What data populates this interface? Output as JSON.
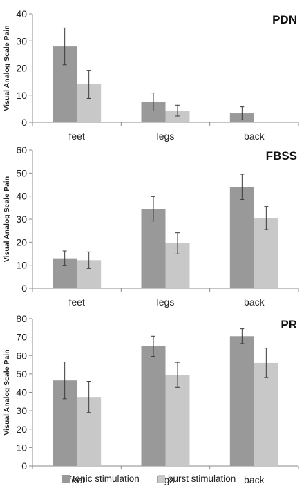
{
  "chart_data": [
    {
      "type": "bar",
      "title": "PDN",
      "ylabel": "Visual Analog Scale Pain",
      "ylim": [
        0,
        40
      ],
      "yticks": [
        0,
        10,
        20,
        30,
        40
      ],
      "categories": [
        "feet",
        "legs",
        "back"
      ],
      "series": [
        {
          "name": "tonic stimulation",
          "values": [
            28,
            7.5,
            3.3
          ],
          "errors": [
            6.8,
            3.3,
            2.4
          ]
        },
        {
          "name": "burst stimulation",
          "values": [
            14,
            4.3,
            0
          ],
          "errors": [
            5.2,
            2.0,
            0
          ]
        }
      ]
    },
    {
      "type": "bar",
      "title": "FBSS",
      "ylabel": "Visual Analog Scale Pain",
      "ylim": [
        0,
        60
      ],
      "yticks": [
        0,
        10,
        20,
        30,
        40,
        50,
        60
      ],
      "categories": [
        "feet",
        "legs",
        "back"
      ],
      "series": [
        {
          "name": "tonic stimulation",
          "values": [
            13,
            34.5,
            44
          ],
          "errors": [
            3.2,
            5.3,
            5.5
          ]
        },
        {
          "name": "burst stimulation",
          "values": [
            12.2,
            19.5,
            30.5
          ],
          "errors": [
            3.6,
            4.6,
            5.0
          ]
        }
      ]
    },
    {
      "type": "bar",
      "title": "PR",
      "ylabel": "Visual Analog Scale Pain",
      "ylim": [
        0,
        80
      ],
      "yticks": [
        0,
        10,
        20,
        30,
        40,
        50,
        60,
        70,
        80
      ],
      "categories": [
        "feet",
        "legs",
        "back"
      ],
      "series": [
        {
          "name": "tonic stimulation",
          "values": [
            46.5,
            65,
            70.5
          ],
          "errors": [
            10.0,
            5.5,
            4.0
          ]
        },
        {
          "name": "burst stimulation",
          "values": [
            37.5,
            49.5,
            56
          ],
          "errors": [
            8.5,
            6.8,
            8.0
          ]
        }
      ]
    }
  ],
  "legend": {
    "position": "bottom",
    "items": [
      {
        "label": "tonic stimulation",
        "color": "#999999"
      },
      {
        "label": "burst stimulation",
        "color": "#c8c8c8"
      }
    ]
  },
  "colors": {
    "series": [
      "#999999",
      "#c8c8c8"
    ],
    "axis": "#8a8a8a",
    "error": "#3a3a3a"
  }
}
